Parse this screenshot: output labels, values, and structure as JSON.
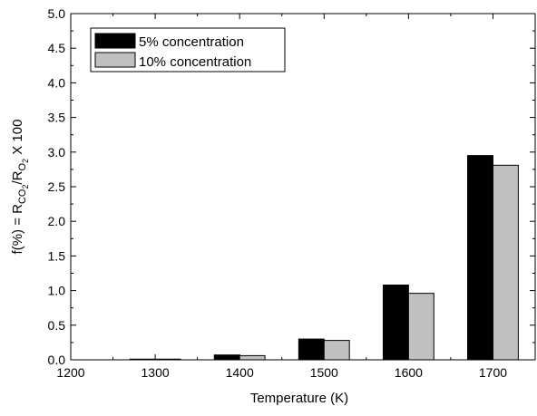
{
  "chart_data": {
    "type": "bar",
    "xlabel": "Temperature (K)",
    "ylabel_parts": {
      "prefix": "f(%) = R",
      "sub1": "CO",
      "sub1_sub": "2",
      "mid": "/R",
      "sub2": "O",
      "sub2_sub": "2",
      "suffix": " X 100"
    },
    "xlim": [
      1200,
      1750
    ],
    "ylim": [
      0,
      5.0
    ],
    "x_ticks": [
      1200,
      1300,
      1400,
      1500,
      1600,
      1700
    ],
    "y_ticks": [
      "0.0",
      "0.5",
      "1.0",
      "1.5",
      "2.0",
      "2.5",
      "3.0",
      "3.5",
      "4.0",
      "4.5",
      "5.0"
    ],
    "categories": [
      1300,
      1400,
      1500,
      1600,
      1700
    ],
    "series": [
      {
        "name": "5% concentration",
        "color": "#000000",
        "values": [
          0.01,
          0.07,
          0.3,
          1.08,
          2.95
        ]
      },
      {
        "name": "10% concentration",
        "color": "#c0c0c0",
        "values": [
          0.01,
          0.06,
          0.28,
          0.96,
          2.81
        ]
      }
    ],
    "legend_position": "top-left"
  }
}
